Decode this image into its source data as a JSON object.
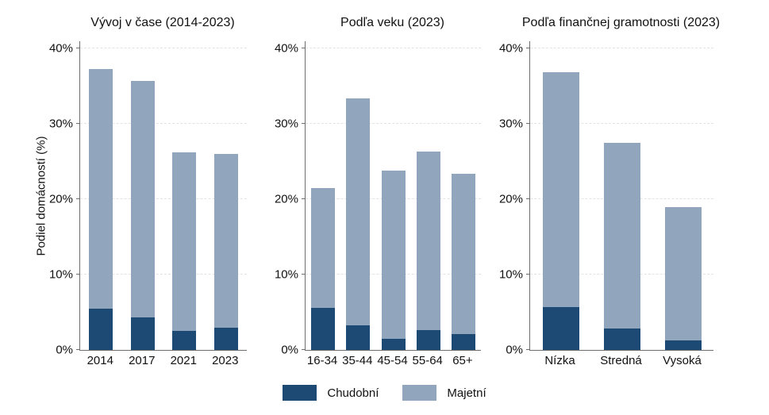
{
  "axes": {
    "ylabel": "Podiel domácností (%)"
  },
  "legend": {
    "items": [
      {
        "label": "Chudobní",
        "color": "#1d4a75"
      },
      {
        "label": "Majetní",
        "color": "#91a6bd"
      }
    ]
  },
  "chart_data": [
    {
      "type": "bar",
      "stacked": true,
      "title": "Vývoj v čase (2014-2023)",
      "categories": [
        "2014",
        "2017",
        "2021",
        "2023"
      ],
      "series": [
        {
          "name": "Chudobní",
          "color": "#1d4a75",
          "values": [
            5.5,
            4.3,
            2.5,
            2.9
          ]
        },
        {
          "name": "Majetní",
          "color": "#91a6bd",
          "values": [
            31.8,
            31.4,
            23.7,
            23.1
          ]
        }
      ],
      "totals": [
        37.3,
        35.7,
        26.2,
        26.0
      ],
      "ylabel": "Podiel domácností (%)",
      "yticks": [
        {
          "label": "0%",
          "value": 0
        },
        {
          "label": "10%",
          "value": 10
        },
        {
          "label": "20%",
          "value": 20
        },
        {
          "label": "30%",
          "value": 30
        },
        {
          "label": "40%",
          "value": 40
        }
      ],
      "ylim": [
        0,
        41
      ],
      "grid": "horizontal-dashed",
      "legend_position": "bottom-center-shared"
    },
    {
      "type": "bar",
      "stacked": true,
      "title": "Podľa veku (2023)",
      "categories": [
        "16-34",
        "35-44",
        "45-54",
        "55-64",
        "65+"
      ],
      "series": [
        {
          "name": "Chudobní",
          "color": "#1d4a75",
          "values": [
            5.6,
            3.3,
            1.5,
            2.6,
            2.1
          ]
        },
        {
          "name": "Majetní",
          "color": "#91a6bd",
          "values": [
            15.9,
            30.1,
            22.3,
            23.7,
            21.3
          ]
        }
      ],
      "totals": [
        21.5,
        33.4,
        23.8,
        26.3,
        23.4
      ],
      "ylabel": "Podiel domácností (%)",
      "yticks": [
        {
          "label": "0%",
          "value": 0
        },
        {
          "label": "10%",
          "value": 10
        },
        {
          "label": "20%",
          "value": 20
        },
        {
          "label": "30%",
          "value": 30
        },
        {
          "label": "40%",
          "value": 40
        }
      ],
      "ylim": [
        0,
        41
      ],
      "grid": "horizontal-dashed",
      "legend_position": "bottom-center-shared"
    },
    {
      "type": "bar",
      "stacked": true,
      "title": "Podľa finančnej gramotnosti (2023)",
      "categories": [
        "Nízka",
        "Stredná",
        "Vysoká"
      ],
      "series": [
        {
          "name": "Chudobní",
          "color": "#1d4a75",
          "values": [
            5.7,
            2.8,
            1.3
          ]
        },
        {
          "name": "Majetní",
          "color": "#91a6bd",
          "values": [
            31.1,
            24.7,
            17.7
          ]
        }
      ],
      "totals": [
        36.8,
        27.5,
        19.0
      ],
      "ylabel": "Podiel domácností (%)",
      "yticks": [
        {
          "label": "0%",
          "value": 0
        },
        {
          "label": "10%",
          "value": 10
        },
        {
          "label": "20%",
          "value": 20
        },
        {
          "label": "30%",
          "value": 30
        },
        {
          "label": "40%",
          "value": 40
        }
      ],
      "ylim": [
        0,
        41
      ],
      "grid": "horizontal-dashed",
      "legend_position": "bottom-center-shared"
    }
  ]
}
